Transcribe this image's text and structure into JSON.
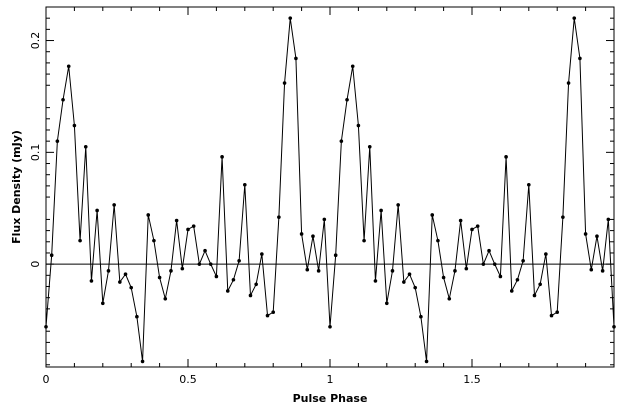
{
  "chart_data": {
    "type": "line",
    "title": "",
    "xlabel": "Pulse Phase",
    "ylabel": "Flux Density (mJy)",
    "xlim": [
      0,
      2
    ],
    "ylim": [
      -0.092,
      0.23
    ],
    "x_ticks": [
      0,
      0.5,
      1,
      1.5
    ],
    "x_tick_labels": [
      "0",
      "0.5",
      "1",
      "1.5"
    ],
    "y_ticks": [
      0,
      0.1,
      0.2
    ],
    "y_tick_labels": [
      "0",
      "0.1",
      "0.2"
    ],
    "grid": false,
    "zero_line": true,
    "marker": "dot",
    "line_color": "#000000",
    "series": [
      {
        "x": [
          0.0,
          0.02,
          0.04,
          0.06,
          0.08,
          0.1,
          0.12,
          0.14,
          0.16,
          0.18,
          0.2,
          0.22,
          0.24,
          0.26,
          0.28,
          0.3,
          0.32,
          0.34,
          0.36,
          0.38,
          0.4,
          0.42,
          0.44,
          0.46,
          0.48,
          0.5,
          0.52,
          0.54,
          0.56,
          0.58,
          0.6,
          0.62,
          0.64,
          0.66,
          0.68,
          0.7,
          0.72,
          0.74,
          0.76,
          0.78,
          0.8,
          0.82,
          0.84,
          0.86,
          0.88,
          0.9,
          0.92,
          0.94,
          0.96,
          0.98,
          1.0,
          1.02,
          1.04,
          1.06,
          1.08,
          1.1,
          1.12,
          1.14,
          1.16,
          1.18,
          1.2,
          1.22,
          1.24,
          1.26,
          1.28,
          1.3,
          1.32,
          1.34,
          1.36,
          1.38,
          1.4,
          1.42,
          1.44,
          1.46,
          1.48,
          1.5,
          1.52,
          1.54,
          1.56,
          1.58,
          1.6,
          1.62,
          1.64,
          1.66,
          1.68,
          1.7,
          1.72,
          1.74,
          1.76,
          1.78,
          1.8,
          1.82,
          1.84,
          1.86,
          1.88,
          1.9,
          1.92,
          1.94,
          1.96,
          1.98,
          2.0
        ],
        "y": [
          -0.056,
          0.008,
          0.11,
          0.147,
          0.177,
          0.124,
          0.021,
          0.105,
          -0.015,
          0.048,
          -0.035,
          -0.006,
          0.053,
          -0.016,
          -0.009,
          -0.021,
          -0.047,
          -0.087,
          0.044,
          0.021,
          -0.012,
          -0.031,
          -0.006,
          0.039,
          -0.004,
          0.031,
          0.034,
          0.0,
          0.012,
          0.0,
          -0.011,
          0.096,
          -0.024,
          -0.014,
          0.003,
          0.071,
          -0.028,
          -0.018,
          0.009,
          -0.046,
          -0.043,
          0.042,
          0.162,
          0.22,
          0.184,
          0.027,
          -0.005,
          0.025,
          -0.006,
          0.04,
          -0.056,
          0.008,
          0.11,
          0.147,
          0.177,
          0.124,
          0.021,
          0.105,
          -0.015,
          0.048,
          -0.035,
          -0.006,
          0.053,
          -0.016,
          -0.009,
          -0.021,
          -0.047,
          -0.087,
          0.044,
          0.021,
          -0.012,
          -0.031,
          -0.006,
          0.039,
          -0.004,
          0.031,
          0.034,
          0.0,
          0.012,
          0.0,
          -0.011,
          0.096,
          -0.024,
          -0.014,
          0.003,
          0.071,
          -0.028,
          -0.018,
          0.009,
          -0.046,
          -0.043,
          0.042,
          0.162,
          0.22,
          0.184,
          0.027,
          -0.005,
          0.025,
          -0.006,
          0.04,
          -0.056
        ]
      }
    ]
  }
}
